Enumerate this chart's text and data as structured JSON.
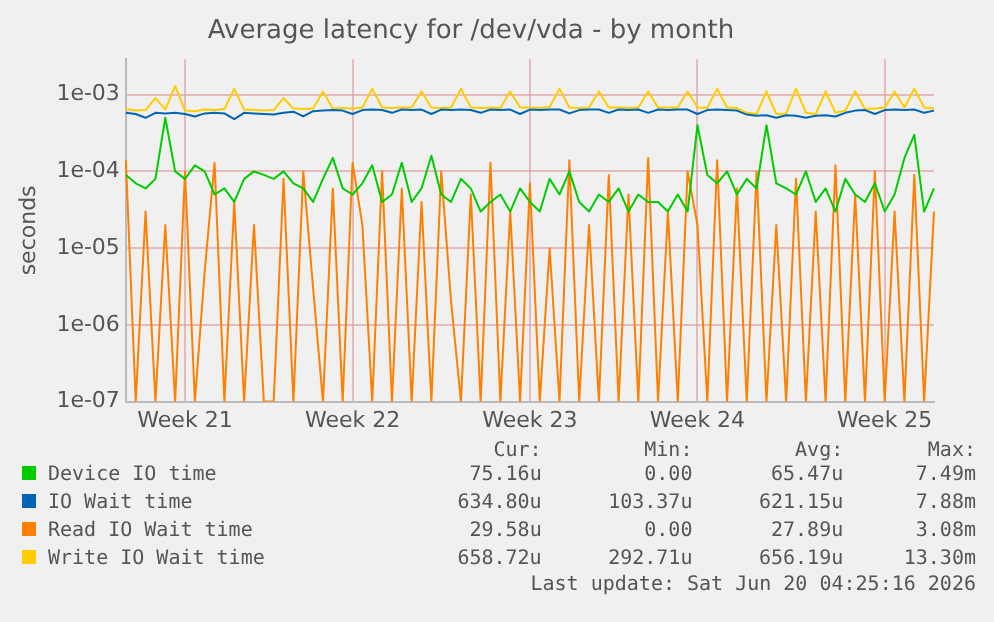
{
  "chart_data": {
    "type": "line",
    "title": "Average latency for /dev/vda - by month",
    "ylabel": "seconds",
    "categories": [
      null,
      null,
      null,
      null,
      null,
      null,
      "Week 21",
      null,
      null,
      null,
      null,
      null,
      null,
      null,
      null,
      null,
      null,
      null,
      null,
      null,
      null,
      null,
      null,
      "Week 22",
      null,
      null,
      null,
      null,
      null,
      null,
      null,
      null,
      null,
      null,
      null,
      null,
      null,
      null,
      null,
      null,
      null,
      "Week 23",
      null,
      null,
      null,
      null,
      null,
      null,
      null,
      null,
      null,
      null,
      null,
      null,
      null,
      null,
      null,
      null,
      "Week 24",
      null,
      null,
      null,
      null,
      null,
      null,
      null,
      null,
      null,
      null,
      null,
      null,
      null,
      null,
      null,
      null,
      null,
      null,
      "Week 25",
      null,
      null,
      null,
      null,
      null
    ],
    "series": [
      {
        "name": "Device IO time",
        "color": "#00cc00",
        "values": [
          9e-05,
          7e-05,
          6e-05,
          8e-05,
          0.0005,
          0.0001,
          8e-05,
          0.00012,
          0.0001,
          5e-05,
          6e-05,
          4e-05,
          8e-05,
          0.0001,
          9e-05,
          8e-05,
          0.0001,
          7e-05,
          6e-05,
          4e-05,
          8e-05,
          0.00015,
          6e-05,
          5e-05,
          7e-05,
          0.00012,
          4e-05,
          5e-05,
          0.00013,
          4e-05,
          6e-05,
          0.00016,
          5e-05,
          4e-05,
          8e-05,
          6e-05,
          3e-05,
          4e-05,
          5e-05,
          3e-05,
          6e-05,
          4e-05,
          3e-05,
          8e-05,
          5e-05,
          0.0001,
          4e-05,
          3e-05,
          5e-05,
          4e-05,
          6e-05,
          3e-05,
          5e-05,
          4e-05,
          4e-05,
          3e-05,
          5e-05,
          3e-05,
          0.0004,
          9e-05,
          7e-05,
          0.0001,
          5e-05,
          8e-05,
          6e-05,
          0.0004,
          7e-05,
          6e-05,
          5e-05,
          0.0001,
          4e-05,
          6e-05,
          3e-05,
          8e-05,
          5e-05,
          4e-05,
          7e-05,
          3e-05,
          5e-05,
          0.00015,
          0.0003,
          3e-05,
          6e-05
        ]
      },
      {
        "name": "IO Wait time",
        "color": "#0066b3",
        "values": [
          0.00058,
          0.00056,
          0.0005,
          0.00058,
          0.00057,
          0.00058,
          0.00056,
          0.00052,
          0.00057,
          0.00058,
          0.00057,
          0.00048,
          0.00058,
          0.00057,
          0.00056,
          0.00055,
          0.00058,
          0.0006,
          0.00052,
          0.00061,
          0.00062,
          0.00063,
          0.00062,
          0.00056,
          0.00063,
          0.00064,
          0.00063,
          0.00058,
          0.00064,
          0.00063,
          0.00064,
          0.00056,
          0.00064,
          0.00063,
          0.00064,
          0.00063,
          0.00058,
          0.00064,
          0.00063,
          0.00064,
          0.00056,
          0.00064,
          0.00063,
          0.00064,
          0.00064,
          0.00057,
          0.00063,
          0.00064,
          0.00064,
          0.00058,
          0.00064,
          0.00063,
          0.00064,
          0.00058,
          0.00064,
          0.00063,
          0.00064,
          0.00064,
          0.00056,
          0.00063,
          0.00064,
          0.00063,
          0.00062,
          0.00055,
          0.00053,
          0.00054,
          0.0005,
          0.00054,
          0.00053,
          0.0005,
          0.00053,
          0.00054,
          0.00052,
          0.00058,
          0.00062,
          0.00063,
          0.00056,
          0.00063,
          0.00064,
          0.00063,
          0.00064,
          0.00058,
          0.00062
        ]
      },
      {
        "name": "Read IO Wait time",
        "color": "#ff8000",
        "values": [
          0.00014,
          1e-07,
          3e-05,
          1e-07,
          2e-05,
          1e-07,
          0.0001,
          1e-07,
          5e-06,
          0.00013,
          1e-07,
          4e-05,
          1e-07,
          2e-05,
          1e-07,
          1e-07,
          8e-05,
          1e-07,
          0.0001,
          3e-06,
          1e-07,
          6e-05,
          1e-07,
          0.00013,
          2e-05,
          1e-07,
          0.0001,
          1e-07,
          6e-05,
          1e-07,
          4e-05,
          1e-07,
          0.0001,
          2e-06,
          1e-07,
          5e-05,
          1e-07,
          0.00013,
          1e-07,
          3e-05,
          1e-07,
          7e-05,
          1e-07,
          1e-05,
          1e-07,
          0.00014,
          1e-07,
          2e-05,
          1e-07,
          9e-05,
          1e-07,
          5e-05,
          1e-07,
          0.00015,
          1e-07,
          3e-05,
          1e-07,
          0.0001,
          2e-05,
          1e-07,
          0.00014,
          1e-07,
          6e-05,
          1e-07,
          0.0001,
          1e-07,
          2e-05,
          1e-07,
          8e-05,
          1e-07,
          3e-05,
          1e-07,
          0.00012,
          1e-07,
          5e-05,
          1e-07,
          0.0001,
          1e-07,
          3e-05,
          1e-07,
          9e-05,
          1e-07,
          3e-05
        ]
      },
      {
        "name": "Write IO Wait time",
        "color": "#ffcc00",
        "values": [
          0.00065,
          0.00062,
          0.00063,
          0.0009,
          0.00064,
          0.0013,
          0.00062,
          0.00061,
          0.00064,
          0.00063,
          0.00065,
          0.0012,
          0.00064,
          0.00063,
          0.00062,
          0.00063,
          0.0009,
          0.00066,
          0.00065,
          0.00066,
          0.0011,
          0.00066,
          0.00067,
          0.00066,
          0.00068,
          0.0012,
          0.00068,
          0.00067,
          0.00068,
          0.00068,
          0.0011,
          0.00068,
          0.00067,
          0.00068,
          0.0012,
          0.00068,
          0.00067,
          0.00068,
          0.00067,
          0.0011,
          0.00068,
          0.00068,
          0.00067,
          0.00069,
          0.0012,
          0.00068,
          0.00067,
          0.00068,
          0.0011,
          0.00068,
          0.00068,
          0.00067,
          0.00068,
          0.0011,
          0.00068,
          0.00068,
          0.00068,
          0.0011,
          0.00068,
          0.00067,
          0.0012,
          0.00068,
          0.00067,
          0.00058,
          0.00056,
          0.0011,
          0.00056,
          0.00057,
          0.0012,
          0.00058,
          0.00056,
          0.0011,
          0.00058,
          0.00062,
          0.0011,
          0.00065,
          0.00066,
          0.00068,
          0.0011,
          0.00068,
          0.0012,
          0.00068,
          0.00066
        ]
      }
    ],
    "ylim": [
      1e-07,
      0.0029
    ],
    "log": true,
    "yticks": [
      {
        "value": 1e-07,
        "label": "1e-07"
      },
      {
        "value": 1e-06,
        "label": "1e-06"
      },
      {
        "value": 1e-05,
        "label": "1e-05"
      },
      {
        "value": 0.0001,
        "label": "1e-04"
      },
      {
        "value": 0.001,
        "label": "1e-03"
      }
    ],
    "grid": true,
    "legend": "bottom",
    "annotations": [
      "Cur:",
      "Min:",
      "Avg:",
      "Max:",
      "75.16u",
      "0.00",
      "65.47u",
      "7.49m",
      "634.80u",
      "103.37u",
      "621.15u",
      "7.88m",
      "29.58u",
      "0.00",
      "27.89u",
      "3.08m",
      "658.72u",
      "292.71u",
      "656.19u",
      "13.30m",
      "Last update: Sat Jun 20 04:25:16 2026"
    ]
  }
}
